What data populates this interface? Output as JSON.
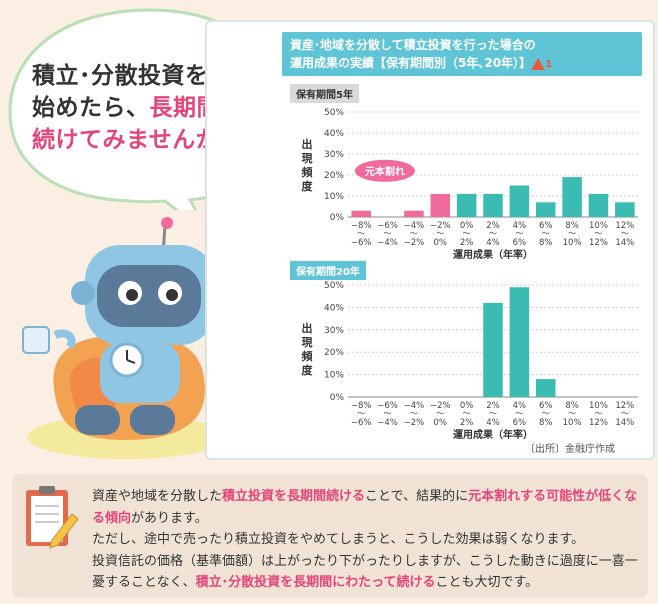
{
  "bubble": {
    "line1": "積立･分散投資を",
    "line2a": "始めたら、",
    "line2b": "長期間",
    "line3": "続けてみませんか？"
  },
  "panel": {
    "title_line1": "資産･地域を分散して積立投資を行った場合の",
    "title_line2": "運用成果の実績【保有期間別（5年､20年）】",
    "warn_number": "1",
    "source": "〔出所〕金融庁作成"
  },
  "colors": {
    "teal": "#3bbcb3",
    "pink": "#f06a9b",
    "title_bg": "#5fc5d6",
    "highlight": "#e5467a"
  },
  "chart_data": [
    {
      "type": "bar",
      "title": "保有期間5年",
      "ylabel": "出現頻度",
      "xlabel": "運用成果（年率）",
      "ylim": [
        0,
        50
      ],
      "yticks": [
        "0%",
        "10%",
        "20%",
        "30%",
        "40%",
        "50%"
      ],
      "categories": [
        "−8%〜−6%",
        "−6%〜−4%",
        "−4%〜−2%",
        "−2%〜0%",
        "0%〜2%",
        "2%〜4%",
        "4%〜6%",
        "6%〜8%",
        "8%〜10%",
        "10%〜12%",
        "12%〜14%"
      ],
      "tick_top": [
        "−8%",
        "−6%",
        "−4%",
        "−2%",
        "0%",
        "2%",
        "4%",
        "6%",
        "8%",
        "10%",
        "12%"
      ],
      "tick_bottom": [
        "−6%",
        "−4%",
        "−2%",
        "0%",
        "2%",
        "4%",
        "6%",
        "8%",
        "10%",
        "12%",
        "14%"
      ],
      "values": [
        3,
        0,
        3,
        11,
        11,
        11,
        15,
        7,
        19,
        11,
        7
      ],
      "annotation": "元本割れ"
    },
    {
      "type": "bar",
      "title": "保有期間20年",
      "ylabel": "出現頻度",
      "xlabel": "運用成果（年率）",
      "ylim": [
        0,
        50
      ],
      "yticks": [
        "0%",
        "10%",
        "20%",
        "30%",
        "40%",
        "50%"
      ],
      "categories": [
        "−8%〜−6%",
        "−6%〜−4%",
        "−4%〜−2%",
        "−2%〜0%",
        "0%〜2%",
        "2%〜4%",
        "4%〜6%",
        "6%〜8%",
        "8%〜10%",
        "10%〜12%",
        "12%〜14%"
      ],
      "tick_top": [
        "−8%",
        "−6%",
        "−4%",
        "−2%",
        "0%",
        "2%",
        "4%",
        "6%",
        "8%",
        "10%",
        "12%"
      ],
      "tick_bottom": [
        "−6%",
        "−4%",
        "−2%",
        "0%",
        "2%",
        "4%",
        "6%",
        "8%",
        "10%",
        "12%",
        "14%"
      ],
      "values": [
        0,
        0,
        0,
        0,
        0,
        42,
        49,
        8,
        0,
        0,
        0
      ]
    }
  ],
  "explanation": {
    "p1_a": "資産や地域を分散した",
    "p1_b": "積立投資を長期間続ける",
    "p1_c": "ことで、結果的に",
    "p1_d": "元本割れする可能性が低くなる傾向",
    "p1_e": "があります。",
    "p2": "ただし、途中で売ったり積立投資をやめてしまうと、こうした効果は弱くなります。",
    "p3_a": "投資信託の価格（基準価額）は上がったり下がったりしますが、こうした動きに過度に一喜一憂することなく、",
    "p3_b": "積立･分散投資を長期間にわたって続ける",
    "p3_c": "ことも大切です。"
  }
}
